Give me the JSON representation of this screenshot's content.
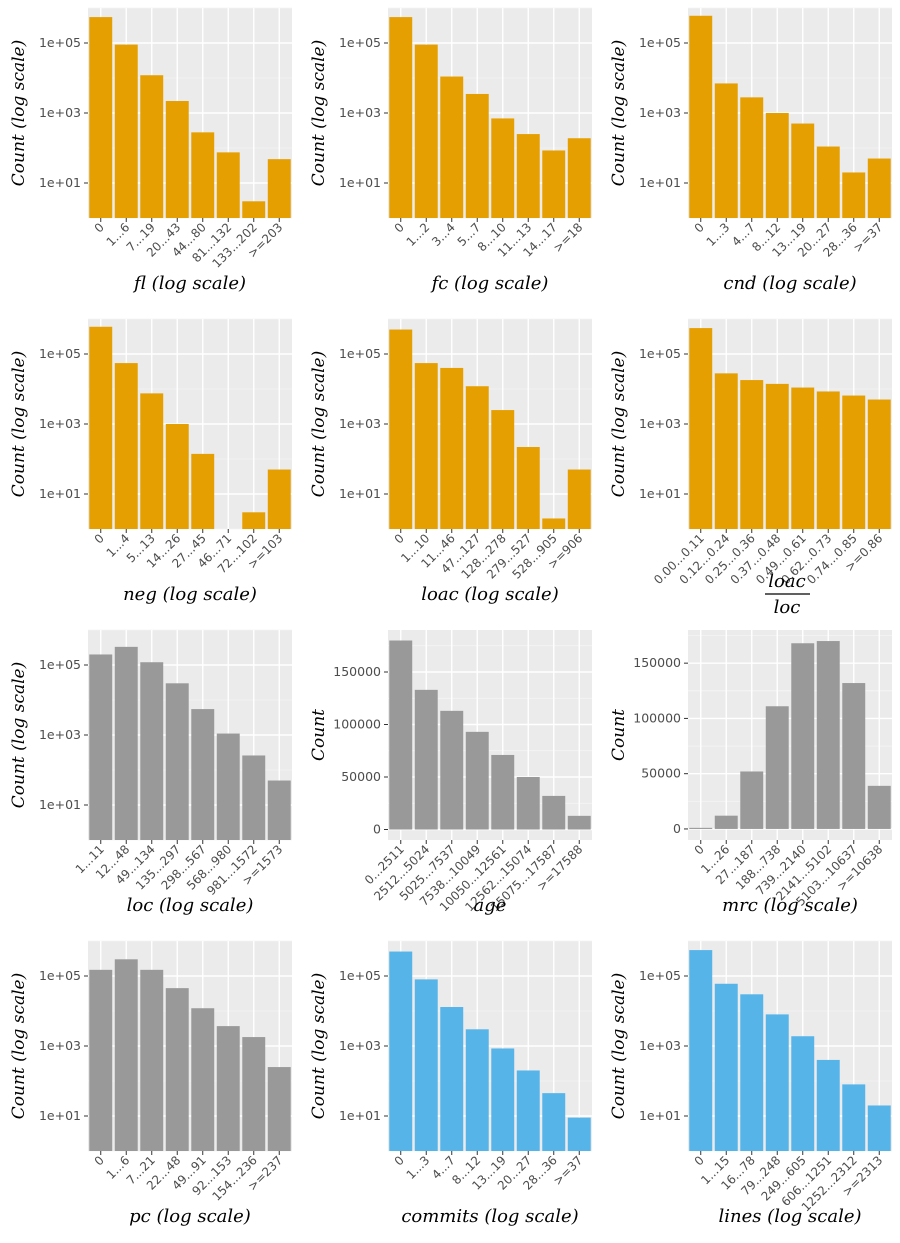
{
  "colors": {
    "orange": "#E69F00",
    "gray": "#999999",
    "blue": "#56B4E9"
  },
  "chart_data": [
    {
      "type": "bar",
      "color": "orange",
      "xlabel": "fl (log scale)",
      "ylabel": "Count (log scale)",
      "scale": "log",
      "categories": [
        "0",
        "1...6",
        "7...19",
        "20...43",
        "44...80",
        "81...132",
        "133...202",
        ">=203"
      ],
      "values": [
        550000,
        90000,
        12000,
        2200,
        280,
        75,
        3,
        48
      ],
      "ylim": [
        1,
        1000000
      ],
      "yticks": [
        "1e+01",
        "1e+03",
        "1e+05"
      ],
      "ytick_values": [
        10,
        1000,
        100000
      ]
    },
    {
      "type": "bar",
      "color": "orange",
      "xlabel": "fc (log scale)",
      "ylabel": "Count (log scale)",
      "scale": "log",
      "categories": [
        "0",
        "1...2",
        "3...4",
        "5...7",
        "8...10",
        "11...13",
        "14...17",
        ">=18"
      ],
      "values": [
        550000,
        90000,
        11000,
        3500,
        700,
        250,
        85,
        190
      ],
      "ylim": [
        1,
        1000000
      ],
      "yticks": [
        "1e+01",
        "1e+03",
        "1e+05"
      ],
      "ytick_values": [
        10,
        1000,
        100000
      ]
    },
    {
      "type": "bar",
      "color": "orange",
      "xlabel": "cnd (log scale)",
      "ylabel": "Count (log scale)",
      "scale": "log",
      "categories": [
        "0",
        "1...3",
        "4...7",
        "8...12",
        "13...19",
        "20...27",
        "28...36",
        ">=37"
      ],
      "values": [
        600000,
        7000,
        2800,
        1000,
        500,
        110,
        20,
        50
      ],
      "ylim": [
        1,
        1000000
      ],
      "yticks": [
        "1e+01",
        "1e+03",
        "1e+05"
      ],
      "ytick_values": [
        10,
        1000,
        100000
      ]
    },
    {
      "type": "bar",
      "color": "orange",
      "xlabel": "neg (log scale)",
      "ylabel": "Count (log scale)",
      "scale": "log",
      "categories": [
        "0",
        "1...4",
        "5...13",
        "14...26",
        "27...45",
        "46...71",
        "72...102",
        ">=103"
      ],
      "values": [
        600000,
        55000,
        7500,
        1000,
        140,
        0,
        3,
        50
      ],
      "ylim": [
        1,
        1000000
      ],
      "yticks": [
        "1e+01",
        "1e+03",
        "1e+05"
      ],
      "ytick_values": [
        10,
        1000,
        100000
      ]
    },
    {
      "type": "bar",
      "color": "orange",
      "xlabel": "loac (log scale)",
      "ylabel": "Count (log scale)",
      "scale": "log",
      "categories": [
        "0",
        "1...10",
        "11...46",
        "47...127",
        "128...278",
        "279...527",
        "528...905",
        ">=906"
      ],
      "values": [
        500000,
        55000,
        40000,
        12000,
        2500,
        220,
        2,
        50
      ],
      "ylim": [
        1,
        1000000
      ],
      "yticks": [
        "1e+01",
        "1e+03",
        "1e+05"
      ],
      "ytick_values": [
        10,
        1000,
        100000
      ]
    },
    {
      "type": "bar",
      "color": "orange",
      "xlabel_num": "loac",
      "xlabel_den": "loc",
      "ylabel": "Count (log scale)",
      "scale": "log",
      "categories": [
        "0.00...0.11",
        "0.12...0.24",
        "0.25...0.36",
        "0.37...0.48",
        "0.49...0.61",
        "0.62...0.73",
        "0.74...0.85",
        ">=0.86"
      ],
      "values": [
        550000,
        28000,
        18000,
        14000,
        11000,
        8500,
        6500,
        5000
      ],
      "ylim": [
        1,
        1000000
      ],
      "yticks": [
        "1e+01",
        "1e+03",
        "1e+05"
      ],
      "ytick_values": [
        10,
        1000,
        100000
      ]
    },
    {
      "type": "bar",
      "color": "gray",
      "xlabel": "loc (log scale)",
      "ylabel": "Count (log scale)",
      "scale": "log",
      "categories": [
        "1...11",
        "12...48",
        "49...134",
        "135...297",
        "298...567",
        "568...980",
        "981...1572",
        ">=1573"
      ],
      "values": [
        200000,
        330000,
        120000,
        30000,
        5500,
        1100,
        260,
        50
      ],
      "ylim": [
        1,
        1000000
      ],
      "yticks": [
        "1e+01",
        "1e+03",
        "1e+05"
      ],
      "ytick_values": [
        10,
        1000,
        100000
      ]
    },
    {
      "type": "bar",
      "color": "gray",
      "xlabel": "age",
      "ylabel": "Count",
      "scale": "linear",
      "categories": [
        "0...2511",
        "2512...5024",
        "5025...7537",
        "7538...10049",
        "10050...12561",
        "12562...15074",
        "15075...17587",
        ">=17588"
      ],
      "values": [
        180000,
        133000,
        113000,
        93000,
        71000,
        50000,
        32000,
        13000
      ],
      "ylim": [
        -10000,
        190000
      ],
      "yticks": [
        "0",
        "50000",
        "100000",
        "150000"
      ],
      "ytick_values": [
        0,
        50000,
        100000,
        150000
      ]
    },
    {
      "type": "bar",
      "color": "gray",
      "xlabel": "mrc (log scale)",
      "ylabel": "Count",
      "scale": "linear",
      "categories": [
        "0",
        "1...26",
        "27...187",
        "188...738",
        "739...2140",
        "2141...5102",
        "5103...10637",
        ">=10638"
      ],
      "values": [
        1000,
        12000,
        52000,
        111000,
        168000,
        170000,
        132000,
        39000
      ],
      "ylim": [
        -10000,
        180000
      ],
      "yticks": [
        "0",
        "50000",
        "100000",
        "150000"
      ],
      "ytick_values": [
        0,
        50000,
        100000,
        150000
      ]
    },
    {
      "type": "bar",
      "color": "gray",
      "xlabel": "pc (log scale)",
      "ylabel": "Count (log scale)",
      "scale": "log",
      "categories": [
        "0",
        "1...6",
        "7...21",
        "22...48",
        "49...91",
        "92...153",
        "154...236",
        ">=237"
      ],
      "values": [
        150000,
        300000,
        150000,
        45000,
        12000,
        3700,
        1800,
        250
      ],
      "ylim": [
        1,
        1000000
      ],
      "yticks": [
        "1e+01",
        "1e+03",
        "1e+05"
      ],
      "ytick_values": [
        10,
        1000,
        100000
      ]
    },
    {
      "type": "bar",
      "color": "blue",
      "xlabel": "commits (log scale)",
      "ylabel": "Count (log scale)",
      "scale": "log",
      "categories": [
        "0",
        "1...3",
        "4...7",
        "8...12",
        "13...19",
        "20...27",
        "28...36",
        ">=37"
      ],
      "values": [
        500000,
        80000,
        13000,
        3000,
        850,
        200,
        45,
        9
      ],
      "ylim": [
        1,
        1000000
      ],
      "yticks": [
        "1e+01",
        "1e+03",
        "1e+05"
      ],
      "ytick_values": [
        10,
        1000,
        100000
      ]
    },
    {
      "type": "bar",
      "color": "blue",
      "xlabel": "lines (log scale)",
      "ylabel": "Count (log scale)",
      "scale": "log",
      "categories": [
        "0",
        "1...15",
        "16...78",
        "79...248",
        "249...605",
        "606...1251",
        "1252...2312",
        ">=2313"
      ],
      "values": [
        550000,
        60000,
        30000,
        8000,
        1900,
        400,
        80,
        20
      ],
      "ylim": [
        1,
        1000000
      ],
      "yticks": [
        "1e+01",
        "1e+03",
        "1e+05"
      ],
      "ytick_values": [
        10,
        1000,
        100000
      ]
    }
  ]
}
